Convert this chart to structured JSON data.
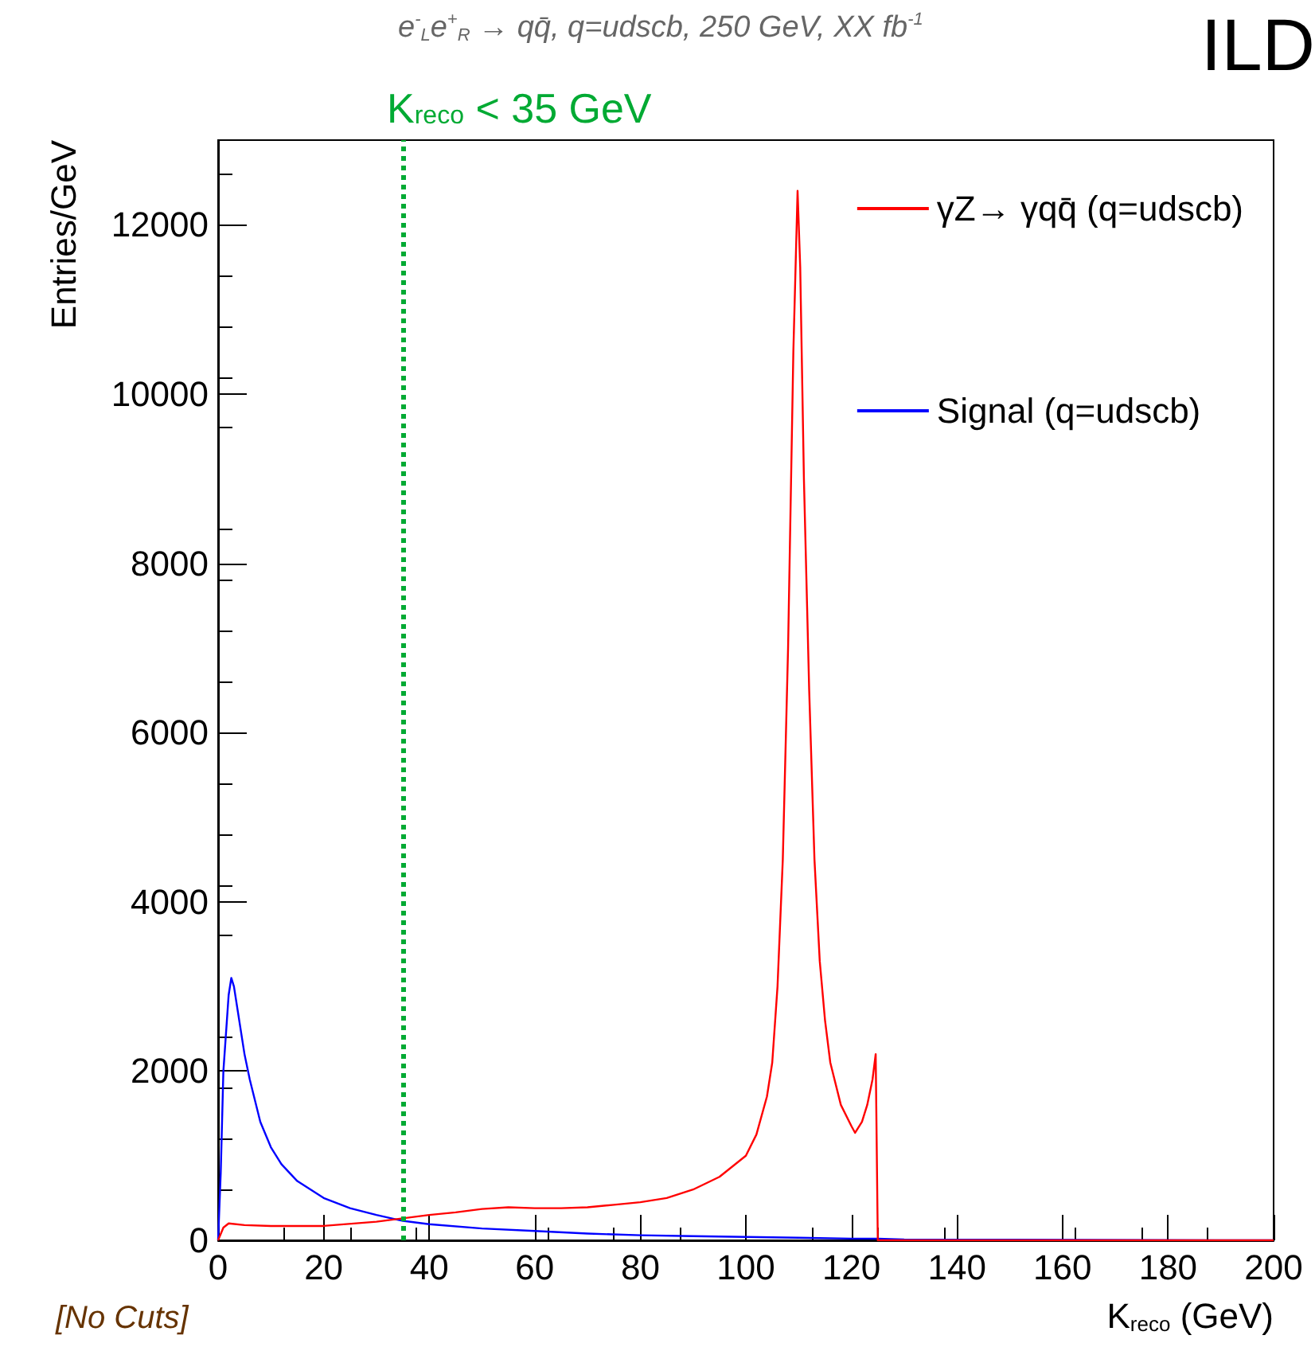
{
  "chart_data": {
    "type": "line",
    "title": "e$^{-}$$_{L}$e$^{+}$$_{R}$ → qq̄, q=udscb, 250 GeV, XX fb$^{-1}$",
    "xlabel": "K$_{reco}$ (GeV)",
    "ylabel": "Entries/GeV",
    "xlim": [
      0,
      200
    ],
    "xticks": [
      0,
      20,
      40,
      60,
      80,
      100,
      120,
      140,
      160,
      180,
      200
    ],
    "ylim": [
      0,
      13000
    ],
    "yticks": [
      0,
      2000,
      4000,
      6000,
      8000,
      10000,
      12000
    ],
    "legend": "top right",
    "marker": "none",
    "line_style": "solid",
    "grid": false,
    "annotations": [
      "[No Cuts]",
      "ILD"
    ],
    "ref_lines": [
      {
        "axis": "x",
        "value": 35,
        "label": "K$_{reco}$ < 35 GeV",
        "color": "#00aa33",
        "line_style": "dotted"
      }
    ],
    "series": [
      {
        "name": "γZ→ γqq̄ (q=udscb)",
        "color": "#ff0000",
        "x": [
          0,
          1,
          2,
          5,
          10,
          20,
          30,
          35,
          40,
          45,
          50,
          55,
          60,
          65,
          70,
          75,
          80,
          85,
          90,
          95,
          100,
          102,
          104,
          105,
          106,
          107,
          108,
          109,
          109.8,
          110.3,
          111,
          112,
          113,
          114,
          115,
          116,
          118,
          120,
          120.7,
          122,
          123,
          124,
          124.6,
          125,
          130,
          200
        ],
        "values": [
          0,
          150,
          200,
          180,
          170,
          170,
          220,
          260,
          300,
          330,
          370,
          390,
          380,
          380,
          390,
          420,
          450,
          500,
          600,
          750,
          1000,
          1250,
          1700,
          2100,
          3000,
          4500,
          7000,
          10500,
          12400,
          11500,
          9000,
          6500,
          4500,
          3300,
          2600,
          2100,
          1600,
          1350,
          1270,
          1400,
          1600,
          1900,
          2200,
          0,
          0,
          0
        ]
      },
      {
        "name": "Signal (q=udscb)",
        "color": "#0000ff",
        "x": [
          0,
          0.5,
          1,
          2,
          2.5,
          3,
          4,
          5,
          6,
          8,
          10,
          12,
          15,
          20,
          25,
          30,
          35,
          40,
          50,
          60,
          70,
          80,
          90,
          100,
          110,
          120,
          125,
          130,
          200
        ],
        "values": [
          0,
          800,
          2000,
          2900,
          3100,
          3000,
          2600,
          2200,
          1900,
          1400,
          1100,
          900,
          700,
          500,
          380,
          300,
          230,
          190,
          140,
          110,
          80,
          60,
          50,
          40,
          30,
          20,
          20,
          10,
          0
        ]
      }
    ]
  }
}
